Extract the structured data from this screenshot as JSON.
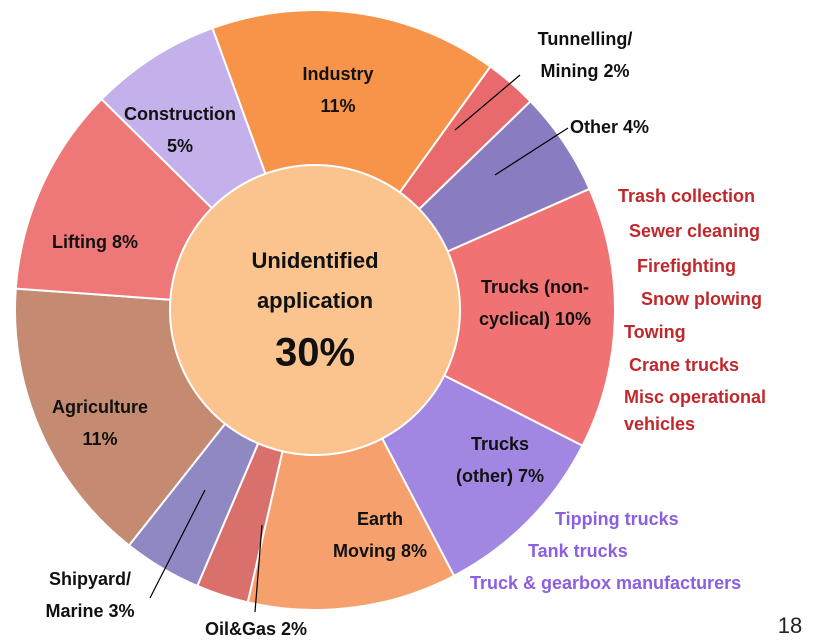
{
  "chart_data": {
    "type": "donut",
    "slices": [
      {
        "label_lines": [
          "Industry",
          "11%"
        ],
        "value": 11,
        "color": "#f7944a"
      },
      {
        "label_lines": [
          "Tunnelling/",
          "Mining 2%"
        ],
        "value": 2,
        "color": "#e86a6c"
      },
      {
        "label_lines": [
          "Other 4%"
        ],
        "value": 4,
        "color": "#8a7cc0"
      },
      {
        "label_lines": [
          "Trucks (non-",
          "cyclical) 10%"
        ],
        "value": 10,
        "color": "#f07272"
      },
      {
        "label_lines": [
          "Trucks",
          "(other) 7%"
        ],
        "value": 7,
        "color": "#a287e2"
      },
      {
        "label_lines": [
          "Earth",
          "Moving 8%"
        ],
        "value": 8,
        "color": "#f6a06e"
      },
      {
        "label_lines": [
          "Oil&Gas 2%"
        ],
        "value": 2,
        "color": "#d9706c"
      },
      {
        "label_lines": [
          "Shipyard/",
          "Marine 3%"
        ],
        "value": 3,
        "color": "#8f88c2"
      },
      {
        "label_lines": [
          "Agriculture",
          "11%"
        ],
        "value": 11,
        "color": "#c48a72"
      },
      {
        "label_lines": [
          "Lifting 8%"
        ],
        "value": 8,
        "color": "#ee7878"
      },
      {
        "label_lines": [
          "Construction",
          "5%"
        ],
        "value": 5,
        "color": "#c4b0ea"
      }
    ],
    "center": {
      "label_lines": [
        "Unidentified",
        "application"
      ],
      "value": 30,
      "value_label": "30%",
      "color": "#fbc48e"
    },
    "noncyclical_list": [
      "Trash collection",
      "Sewer cleaning",
      "Firefighting",
      "Snow plowing",
      "Towing",
      "Crane trucks",
      "Misc operational",
      "vehicles"
    ],
    "other_list": [
      "Tipping trucks",
      "Tank trucks",
      "Truck & gearbox manufacturers"
    ],
    "page_number": "18"
  }
}
